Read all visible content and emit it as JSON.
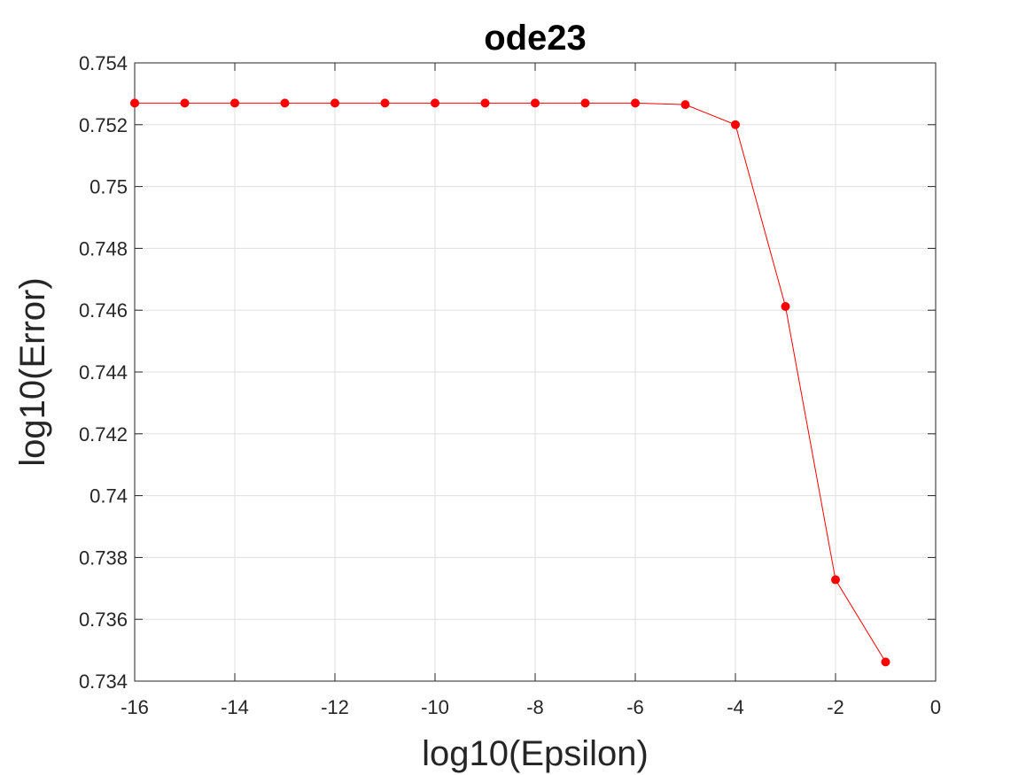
{
  "chart_data": {
    "type": "line",
    "title": "ode23",
    "xlabel": "log10(Epsilon)",
    "ylabel": "log10(Error)",
    "xlim": [
      -16,
      0
    ],
    "ylim": [
      0.734,
      0.754
    ],
    "xticks": [
      -16,
      -14,
      -12,
      -10,
      -8,
      -6,
      -4,
      -2,
      0
    ],
    "xtick_labels": [
      "-16",
      "-14",
      "-12",
      "-10",
      "-8",
      "-6",
      "-4",
      "-2",
      "0"
    ],
    "yticks": [
      0.734,
      0.736,
      0.738,
      0.74,
      0.742,
      0.744,
      0.746,
      0.748,
      0.75,
      0.752,
      0.754
    ],
    "ytick_labels": [
      "0.734",
      "0.736",
      "0.738",
      "0.74",
      "0.742",
      "0.744",
      "0.746",
      "0.748",
      "0.75",
      "0.752",
      "0.754"
    ],
    "grid": true,
    "series": [
      {
        "color": "#ff0000",
        "marker": "filled-circle",
        "x": [
          -16,
          -15,
          -14,
          -13,
          -12,
          -11,
          -10,
          -9,
          -8,
          -7,
          -6,
          -5,
          -4,
          -3,
          -2,
          -1
        ],
        "y": [
          0.7527,
          0.7527,
          0.7527,
          0.7527,
          0.7527,
          0.7527,
          0.7527,
          0.7527,
          0.7527,
          0.7527,
          0.7527,
          0.75265,
          0.752,
          0.74612,
          0.73728,
          0.73462
        ]
      }
    ]
  }
}
